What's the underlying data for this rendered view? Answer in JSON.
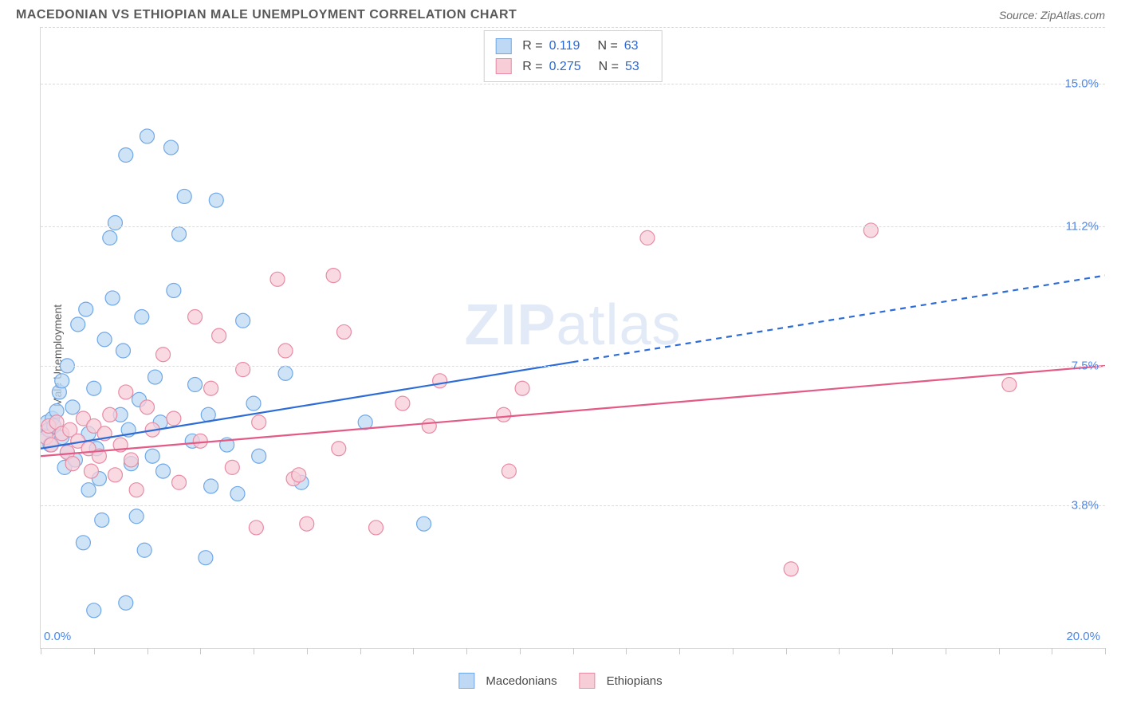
{
  "title": "MACEDONIAN VS ETHIOPIAN MALE UNEMPLOYMENT CORRELATION CHART",
  "source": "Source: ZipAtlas.com",
  "ylabel": "Male Unemployment",
  "watermark_a": "ZIP",
  "watermark_b": "atlas",
  "chart": {
    "type": "scatter",
    "xlim": [
      0,
      20
    ],
    "ylim": [
      0,
      16.5
    ],
    "background_color": "#ffffff",
    "grid_color": "#dcdcdc",
    "axis_color": "#d8d8d8",
    "marker_radius": 9,
    "marker_stroke_width": 1.2,
    "title_fontsize": 16,
    "label_fontsize": 14,
    "tick_fontsize": 15,
    "xtick_positions": [
      0,
      1,
      2,
      3,
      4,
      5,
      6,
      7,
      8,
      9,
      10,
      11,
      12,
      13,
      14,
      15,
      16,
      17,
      18,
      19,
      20
    ],
    "xtick_labels": {
      "left": "0.0%",
      "right": "20.0%",
      "color": "#4b87e8"
    },
    "yticks": [
      {
        "y": 15.0,
        "label": "15.0%",
        "color": "#4b87e8"
      },
      {
        "y": 11.2,
        "label": "11.2%",
        "color": "#4b87e8"
      },
      {
        "y": 7.5,
        "label": "7.5%",
        "color": "#4b87e8"
      },
      {
        "y": 3.8,
        "label": "3.8%",
        "color": "#4b87e8"
      }
    ],
    "series": [
      {
        "name": "Macedonians",
        "fill": "#bfd9f4",
        "stroke": "#6fa8e8",
        "line_color": "#2d6cd6",
        "line_width": 2.2,
        "stats": {
          "R": "0.119",
          "N": "63"
        },
        "trend": {
          "x1": 0,
          "y1": 5.3,
          "x2_solid": 10,
          "y2_solid": 7.6,
          "x2_dash": 20,
          "y2_dash": 9.9
        },
        "points": [
          [
            0.05,
            5.5
          ],
          [
            0.12,
            6.0
          ],
          [
            0.15,
            5.8
          ],
          [
            0.18,
            5.4
          ],
          [
            0.22,
            6.1
          ],
          [
            0.25,
            5.9
          ],
          [
            0.3,
            6.3
          ],
          [
            0.35,
            6.8
          ],
          [
            0.4,
            7.1
          ],
          [
            0.4,
            5.6
          ],
          [
            0.45,
            4.8
          ],
          [
            0.5,
            5.2
          ],
          [
            0.5,
            7.5
          ],
          [
            0.6,
            6.4
          ],
          [
            0.65,
            5.0
          ],
          [
            0.7,
            8.6
          ],
          [
            0.85,
            9.0
          ],
          [
            0.8,
            2.8
          ],
          [
            0.9,
            5.7
          ],
          [
            0.9,
            4.2
          ],
          [
            1.0,
            1.0
          ],
          [
            1.0,
            6.9
          ],
          [
            1.05,
            5.3
          ],
          [
            1.1,
            4.5
          ],
          [
            1.15,
            3.4
          ],
          [
            1.2,
            8.2
          ],
          [
            1.3,
            10.9
          ],
          [
            1.35,
            9.3
          ],
          [
            1.4,
            11.3
          ],
          [
            1.5,
            6.2
          ],
          [
            1.55,
            7.9
          ],
          [
            1.6,
            13.1
          ],
          [
            1.6,
            1.2
          ],
          [
            1.65,
            5.8
          ],
          [
            1.7,
            4.9
          ],
          [
            1.8,
            3.5
          ],
          [
            1.85,
            6.6
          ],
          [
            1.9,
            8.8
          ],
          [
            1.95,
            2.6
          ],
          [
            2.0,
            13.6
          ],
          [
            2.1,
            5.1
          ],
          [
            2.15,
            7.2
          ],
          [
            2.25,
            6.0
          ],
          [
            2.3,
            4.7
          ],
          [
            2.45,
            13.3
          ],
          [
            2.5,
            9.5
          ],
          [
            2.6,
            11.0
          ],
          [
            2.7,
            12.0
          ],
          [
            2.85,
            5.5
          ],
          [
            2.9,
            7.0
          ],
          [
            3.1,
            2.4
          ],
          [
            3.15,
            6.2
          ],
          [
            3.2,
            4.3
          ],
          [
            3.3,
            11.9
          ],
          [
            3.5,
            5.4
          ],
          [
            3.7,
            4.1
          ],
          [
            3.8,
            8.7
          ],
          [
            4.0,
            6.5
          ],
          [
            4.1,
            5.1
          ],
          [
            4.6,
            7.3
          ],
          [
            4.9,
            4.4
          ],
          [
            6.1,
            6.0
          ],
          [
            7.2,
            3.3
          ]
        ]
      },
      {
        "name": "Ethiopians",
        "fill": "#f7cdd8",
        "stroke": "#e88ba5",
        "line_color": "#e25a85",
        "line_width": 2.2,
        "stats": {
          "R": "0.275",
          "N": "53"
        },
        "trend": {
          "x1": 0,
          "y1": 5.1,
          "x2_solid": 20,
          "y2_solid": 7.5
        },
        "points": [
          [
            0.1,
            5.6
          ],
          [
            0.15,
            5.9
          ],
          [
            0.2,
            5.4
          ],
          [
            0.3,
            6.0
          ],
          [
            0.4,
            5.7
          ],
          [
            0.5,
            5.2
          ],
          [
            0.55,
            5.8
          ],
          [
            0.6,
            4.9
          ],
          [
            0.7,
            5.5
          ],
          [
            0.8,
            6.1
          ],
          [
            0.9,
            5.3
          ],
          [
            0.95,
            4.7
          ],
          [
            1.0,
            5.9
          ],
          [
            1.1,
            5.1
          ],
          [
            1.2,
            5.7
          ],
          [
            1.3,
            6.2
          ],
          [
            1.4,
            4.6
          ],
          [
            1.5,
            5.4
          ],
          [
            1.6,
            6.8
          ],
          [
            1.7,
            5.0
          ],
          [
            1.8,
            4.2
          ],
          [
            2.0,
            6.4
          ],
          [
            2.1,
            5.8
          ],
          [
            2.3,
            7.8
          ],
          [
            2.5,
            6.1
          ],
          [
            2.6,
            4.4
          ],
          [
            2.9,
            8.8
          ],
          [
            3.0,
            5.5
          ],
          [
            3.2,
            6.9
          ],
          [
            3.35,
            8.3
          ],
          [
            3.6,
            4.8
          ],
          [
            3.8,
            7.4
          ],
          [
            4.05,
            3.2
          ],
          [
            4.1,
            6.0
          ],
          [
            4.45,
            9.8
          ],
          [
            4.6,
            7.9
          ],
          [
            4.75,
            4.5
          ],
          [
            4.85,
            4.6
          ],
          [
            5.0,
            3.3
          ],
          [
            5.5,
            9.9
          ],
          [
            5.6,
            5.3
          ],
          [
            5.7,
            8.4
          ],
          [
            6.3,
            3.2
          ],
          [
            6.8,
            6.5
          ],
          [
            7.3,
            5.9
          ],
          [
            7.5,
            7.1
          ],
          [
            8.7,
            6.2
          ],
          [
            8.8,
            4.7
          ],
          [
            9.05,
            6.9
          ],
          [
            11.4,
            10.9
          ],
          [
            14.1,
            2.1
          ],
          [
            15.6,
            11.1
          ],
          [
            18.2,
            7.0
          ]
        ]
      }
    ],
    "legend": {
      "stats_labels": {
        "R": "R =",
        "N": "N ="
      }
    }
  }
}
